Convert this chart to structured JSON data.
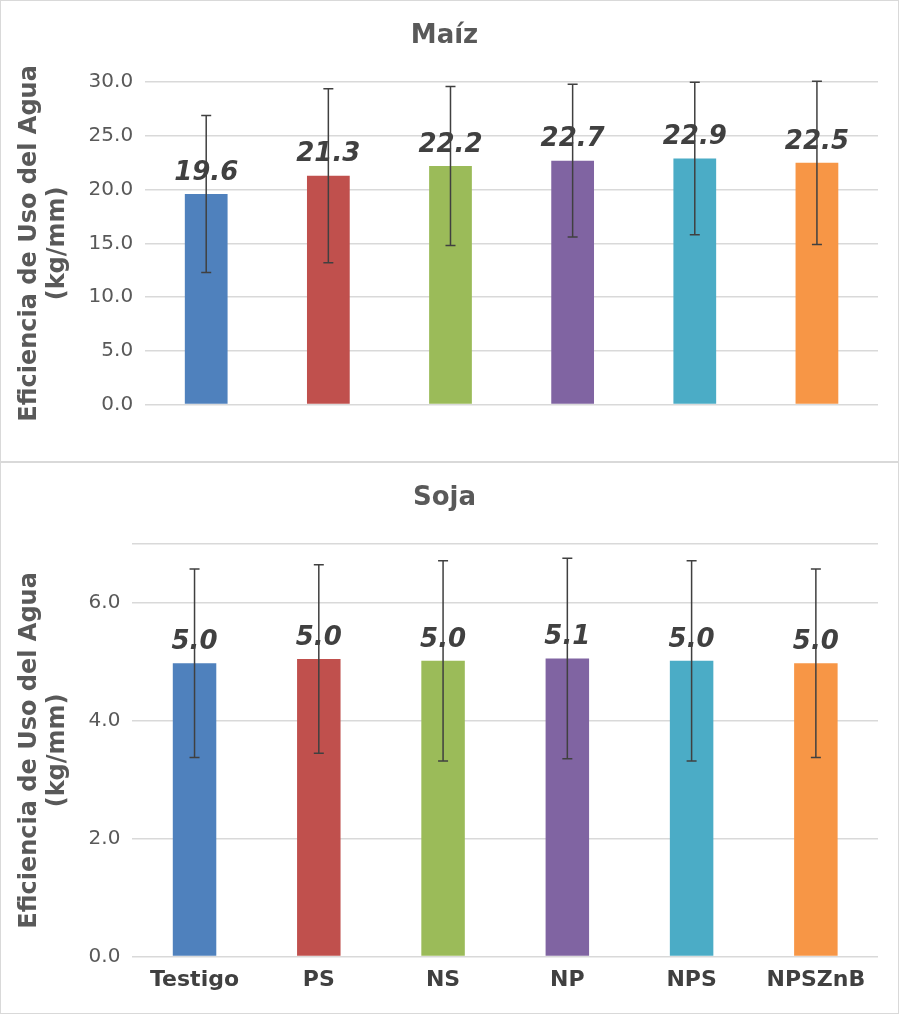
{
  "chart_data": [
    {
      "type": "bar",
      "title": "Maíz",
      "ylabel": "Eficiencia de Uso del Agua\n(kg/mm)",
      "categories": [
        null,
        null,
        null,
        null,
        null,
        null
      ],
      "values": [
        19.6,
        21.3,
        22.2,
        22.7,
        22.9,
        22.5
      ],
      "errors": [
        7.3,
        8.1,
        7.4,
        7.1,
        7.1,
        7.6
      ],
      "colors": [
        "#4f81bd",
        "#c0504d",
        "#9bbb59",
        "#8064a2",
        "#4bacc6",
        "#f79646"
      ],
      "ylim": [
        0,
        30
      ],
      "yticks": [
        {
          "value": 0,
          "label": "0.0"
        },
        {
          "value": 5,
          "label": "5.0"
        },
        {
          "value": 10,
          "label": "10.0"
        },
        {
          "value": 15,
          "label": "15.0"
        },
        {
          "value": 20,
          "label": "20.0"
        },
        {
          "value": 25,
          "label": "25.0"
        },
        {
          "value": 30,
          "label": "30.0"
        }
      ],
      "grid": "y",
      "data_labels": true
    },
    {
      "type": "bar",
      "title": "Soja",
      "ylabel": "Eficiencia de Uso del Agua\n(kg/mm)",
      "categories": [
        "Testigo",
        "PS",
        "NS",
        "NP",
        "NPS",
        "NPSZnB"
      ],
      "values": [
        4.98,
        5.05,
        5.02,
        5.06,
        5.02,
        4.98
      ],
      "value_labels": [
        "5.0",
        "5.0",
        "5.0",
        "5.1",
        "5.0",
        "5.0"
      ],
      "errors": [
        1.6,
        1.6,
        1.7,
        1.7,
        1.7,
        1.6
      ],
      "colors": [
        "#4f81bd",
        "#c0504d",
        "#9bbb59",
        "#8064a2",
        "#4bacc6",
        "#f79646"
      ],
      "ylim": [
        0,
        7
      ],
      "yticks": [
        {
          "value": 0,
          "label": "0.0"
        },
        {
          "value": 2,
          "label": "2.0"
        },
        {
          "value": 4,
          "label": "4.0"
        },
        {
          "value": 6,
          "label": "6.0"
        },
        {
          "value": 7,
          "label": null
        }
      ],
      "grid": "y"
    }
  ]
}
